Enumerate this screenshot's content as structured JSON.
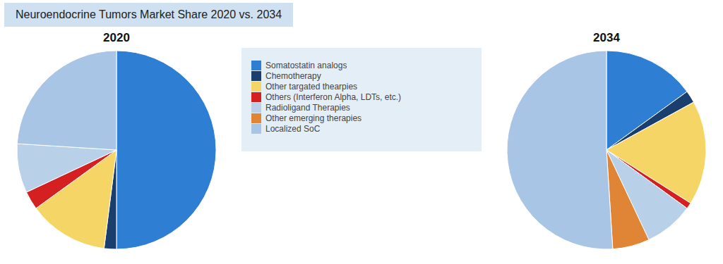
{
  "title": "Neuroendocrine Tumors Market Share 2020 vs. 2034",
  "chart_data": [
    {
      "type": "pie",
      "title": "2020",
      "categories": [
        "Somatostatin analogs",
        "Chemotherapy",
        "Other targated thearpies",
        "Others (Interferon Alpha, LDTs, etc.)",
        "Radioligand Therapies",
        "Other emerging therapies",
        "Localized SoC"
      ],
      "values": [
        50,
        2,
        13,
        3,
        8,
        0,
        24
      ],
      "colors": [
        "#2e7fd4",
        "#1a3f6e",
        "#f5d565",
        "#d42020",
        "#b8d0e8",
        "#e08535",
        "#a8c5e5"
      ]
    },
    {
      "type": "pie",
      "title": "2034",
      "categories": [
        "Somatostatin analogs",
        "Chemotherapy",
        "Other targated thearpies",
        "Others (Interferon Alpha, LDTs, etc.)",
        "Radioligand Therapies",
        "Other emerging therapies",
        "Localized SoC"
      ],
      "values": [
        15,
        2,
        17,
        1,
        8,
        6,
        51
      ],
      "colors": [
        "#2e7fd4",
        "#1a3f6e",
        "#f5d565",
        "#d42020",
        "#b8d0e8",
        "#e08535",
        "#a8c5e5"
      ]
    }
  ]
}
